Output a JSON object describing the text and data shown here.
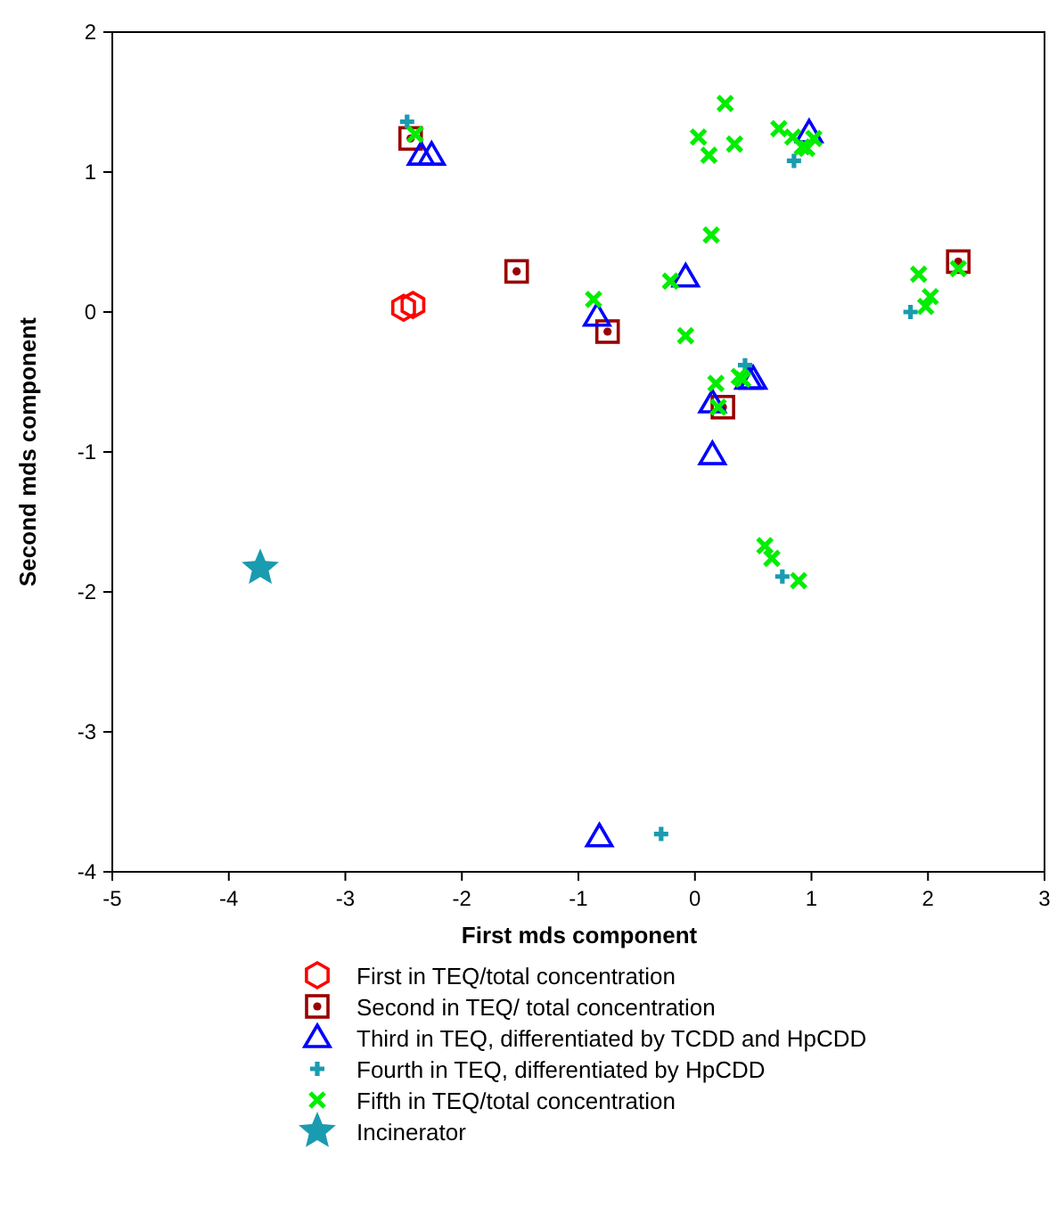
{
  "chart_data": {
    "type": "scatter",
    "xlabel": "First mds component",
    "ylabel": "Second mds component",
    "xlim": [
      -5,
      3
    ],
    "ylim": [
      -4,
      2
    ],
    "xticks": [
      -5,
      -4,
      -3,
      -2,
      -1,
      0,
      1,
      2,
      3
    ],
    "yticks": [
      -4,
      -3,
      -2,
      -1,
      0,
      1,
      2
    ],
    "legend": "bottom",
    "grid": false,
    "series": [
      {
        "name": "First in TEQ/total concentration",
        "color": "#ff0000",
        "x": [
          -2.5,
          -2.42
        ],
        "values": [
          0.03,
          0.05
        ]
      },
      {
        "name": "Second in TEQ/ total concentration",
        "color": "#990000",
        "marker": "square",
        "x": [
          -2.44,
          -1.53,
          -0.75,
          0.24,
          2.26
        ],
        "values": [
          1.24,
          0.29,
          -0.14,
          -0.68,
          0.36
        ]
      },
      {
        "name": "Third in TEQ, differentiated by TCDD and HpCDD",
        "color": "#0000ff",
        "marker": "triangle",
        "x": [
          -2.35,
          -2.26,
          -0.84,
          -0.08,
          0.15,
          0.15,
          0.46,
          0.5,
          0.98,
          -0.82
        ],
        "values": [
          1.12,
          1.12,
          -0.03,
          0.25,
          -0.65,
          -1.02,
          -0.48,
          -0.48,
          1.28,
          -3.75
        ]
      },
      {
        "name": "Fourth in TEQ, differentiated by HpCDD",
        "color": "#1a9bb0",
        "marker": "plus",
        "x": [
          -2.47,
          0.85,
          1.85,
          0.43,
          0.75,
          -0.29
        ],
        "values": [
          1.36,
          1.08,
          0.0,
          -0.38,
          -1.89,
          -3.73
        ]
      },
      {
        "name": "Fifth in TEQ/total concentration",
        "color": "#00ee00",
        "marker": "cross",
        "x": [
          -2.4,
          -0.87,
          0.26,
          0.03,
          0.12,
          0.34,
          0.72,
          0.84,
          0.92,
          1.02,
          0.96,
          0.14,
          -0.21,
          -0.08,
          1.92,
          2.02,
          1.98,
          2.26,
          0.18,
          0.2,
          0.38,
          0.41,
          0.6,
          0.66,
          0.89
        ],
        "values": [
          1.27,
          0.09,
          1.49,
          1.25,
          1.12,
          1.2,
          1.31,
          1.25,
          1.18,
          1.24,
          1.17,
          0.55,
          0.22,
          -0.17,
          0.27,
          0.11,
          0.04,
          0.31,
          -0.51,
          -0.68,
          -0.46,
          -0.48,
          -1.67,
          -1.76,
          -1.92
        ]
      },
      {
        "name": "Incinerator",
        "color": "#1a9bb0",
        "marker": "star",
        "x": [
          -3.73
        ],
        "values": [
          -1.83
        ]
      }
    ]
  }
}
